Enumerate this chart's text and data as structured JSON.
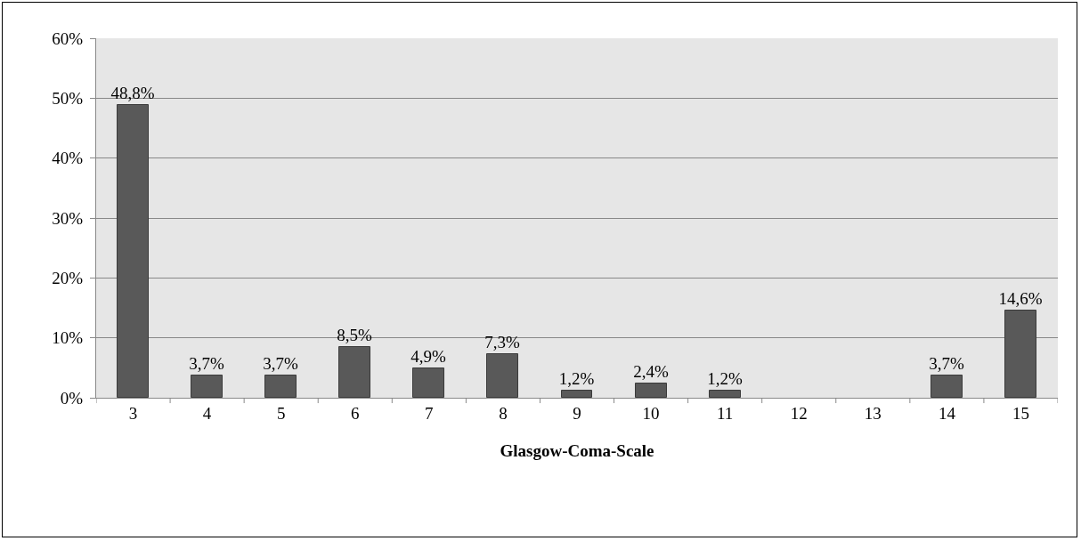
{
  "chart_data": {
    "type": "bar",
    "xlabel": "Glasgow-Coma-Scale",
    "categories": [
      "3",
      "4",
      "5",
      "6",
      "7",
      "8",
      "9",
      "10",
      "11",
      "12",
      "13",
      "14",
      "15"
    ],
    "values": [
      48.8,
      3.7,
      3.7,
      8.5,
      4.9,
      7.3,
      1.2,
      2.4,
      1.2,
      null,
      null,
      3.7,
      14.6
    ],
    "value_labels": [
      "48,8%",
      "3,7%",
      "3,7%",
      "8,5%",
      "4,9%",
      "7,3%",
      "1,2%",
      "2,4%",
      "1,2%",
      null,
      null,
      "3,7%",
      "14,6%"
    ],
    "color": "#595959",
    "ylim": [
      0,
      60
    ],
    "yticks": [
      {
        "value": 0,
        "label": "0%"
      },
      {
        "value": 10,
        "label": "10%"
      },
      {
        "value": 20,
        "label": "20%"
      },
      {
        "value": 30,
        "label": "30%"
      },
      {
        "value": 40,
        "label": "40%"
      },
      {
        "value": 50,
        "label": "50%"
      },
      {
        "value": 60,
        "label": "60%"
      }
    ],
    "grid": "y"
  }
}
